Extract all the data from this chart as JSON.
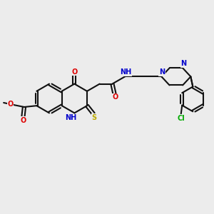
{
  "bg_color": "#ececec",
  "bond_color": "#111111",
  "bond_lw": 1.5,
  "dbl_sep": 0.06,
  "atom_colors": {
    "O": "#dd0000",
    "N": "#0000cc",
    "S": "#bbaa00",
    "Cl": "#00aa00"
  },
  "fs": 7.0,
  "fs_small": 6.5
}
